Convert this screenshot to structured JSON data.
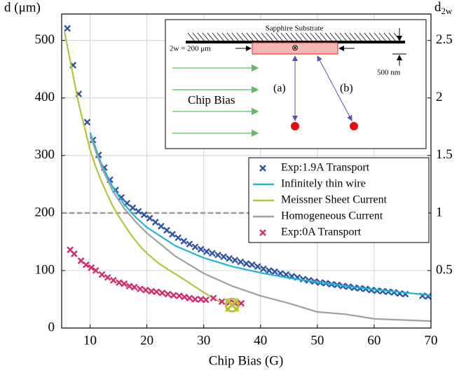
{
  "chart_data": {
    "type": "line",
    "xlabel": "Chip Bias (G)",
    "ylabel": "d (μm)",
    "y2label": [
      "d",
      "2w"
    ],
    "xlim": [
      5,
      70
    ],
    "xticks": [
      10,
      20,
      30,
      40,
      50,
      60,
      70
    ],
    "ylim": [
      0,
      546
    ],
    "yticks": [
      0,
      100,
      200,
      300,
      400,
      500
    ],
    "y2lim": [
      0,
      2.73
    ],
    "y2ticks": [
      0.5,
      1,
      1.5,
      2,
      2.5
    ],
    "grid": true,
    "legend": "right",
    "reference_line": {
      "value": 1,
      "axis": "y2",
      "color": "#999999"
    },
    "series": [
      {
        "name": "Exp:1.9A Transport",
        "style": "markers",
        "color": "#2f54a3",
        "x": [
          6,
          7,
          8,
          9.5,
          10.5,
          11.5,
          12.5,
          13.5,
          14.5,
          15.5,
          16.5,
          17.5,
          18.5,
          19.5,
          20.5,
          21.5,
          22.5,
          23.5,
          24.5,
          25.5,
          26.5,
          27.5,
          28.5,
          29.5,
          30.5,
          31.5,
          32.5,
          33.5,
          34.5,
          35.5,
          36.5,
          37.5,
          38.5,
          39.5,
          40.5,
          41.5,
          42.5,
          43.5,
          44.5,
          45.5,
          46.5,
          47.5,
          48.5,
          49.5,
          50.5,
          51.5,
          52.5,
          53.5,
          54.5,
          55.5,
          56.5,
          57.5,
          58.5,
          59.5,
          60.5,
          61.5,
          62.5,
          63.5,
          64.5,
          65.5,
          68.5,
          69.5
        ],
        "values": [
          521,
          457,
          407,
          358,
          327,
          301,
          279,
          258,
          240,
          227,
          217,
          209,
          203,
          197,
          191,
          184,
          177,
          170,
          163,
          157,
          151,
          146,
          141,
          137,
          133,
          130,
          127,
          124,
          121,
          118,
          115,
          112,
          110,
          107,
          103,
          100,
          98,
          95,
          93,
          90,
          88,
          85,
          83,
          81,
          79,
          78,
          76,
          75,
          73,
          72,
          70,
          69,
          68,
          66,
          65,
          64,
          63,
          62,
          60,
          59,
          56,
          55
        ]
      },
      {
        "name": "Infinitely thin wire",
        "style": "line",
        "color": "#1fb4d6",
        "x": [
          10,
          12,
          14,
          16,
          18,
          20,
          25,
          30,
          35,
          40,
          45,
          50,
          55,
          60,
          65,
          70
        ],
        "values": [
          340,
          285,
          245,
          215,
          193,
          175,
          143,
          122,
          107,
          96,
          87,
          80,
          73,
          67,
          62,
          57
        ]
      },
      {
        "name": "Meissner Sheet Current",
        "style": "line",
        "color": "#b6c43a",
        "x": [
          5.5,
          7,
          8,
          9,
          10,
          11,
          12,
          13,
          14,
          15,
          16,
          17,
          18,
          19,
          20,
          22,
          24,
          26,
          28,
          30,
          32,
          33
        ],
        "values": [
          515,
          440,
          390,
          350,
          310,
          280,
          255,
          233,
          212,
          195,
          180,
          165,
          152,
          140,
          130,
          113,
          100,
          88,
          75,
          62,
          50,
          45
        ]
      },
      {
        "name": "Homogeneous Current",
        "style": "line",
        "color": "#a0a0a0",
        "x": [
          10,
          12,
          14,
          16,
          18,
          20,
          25,
          30,
          35,
          40,
          45,
          50,
          55,
          60,
          65,
          70
        ],
        "values": [
          335,
          280,
          238,
          208,
          185,
          165,
          125,
          95,
          73,
          56,
          43,
          28,
          24,
          16,
          14,
          12
        ]
      },
      {
        "name": "Exp:0A Transport",
        "style": "markers",
        "color": "#d42a6c",
        "x": [
          6.5,
          7.2,
          8.4,
          9.3,
          10.2,
          11,
          12.1,
          13.1,
          14.1,
          15.1,
          16,
          16.9,
          17.8,
          18.8,
          19.8,
          20.8,
          21.7,
          22.7,
          23.7,
          24.7,
          25.7,
          26.6,
          27.5,
          28.5,
          29.5,
          30.4,
          31.7,
          33.2,
          34.5,
          35.5,
          36.6
        ],
        "values": [
          136,
          129,
          117,
          110,
          105,
          100,
          93,
          88,
          83,
          79,
          77,
          73,
          71,
          68,
          66,
          64,
          63,
          61,
          59,
          57,
          56,
          54,
          52,
          50,
          50,
          49,
          52,
          46,
          44,
          43,
          43
        ]
      }
    ],
    "highlight": {
      "x": 35,
      "y": 40,
      "color": "#b6c43a"
    },
    "inset": {
      "substrate_label": "Sapphire Substrate",
      "width_label": "2w = 200 μm",
      "thickness_label": "500 nm",
      "current_symbol": "⊗",
      "arrow_labels": [
        "(a)",
        "(b)"
      ],
      "bias_label": "Chip Bias"
    }
  }
}
